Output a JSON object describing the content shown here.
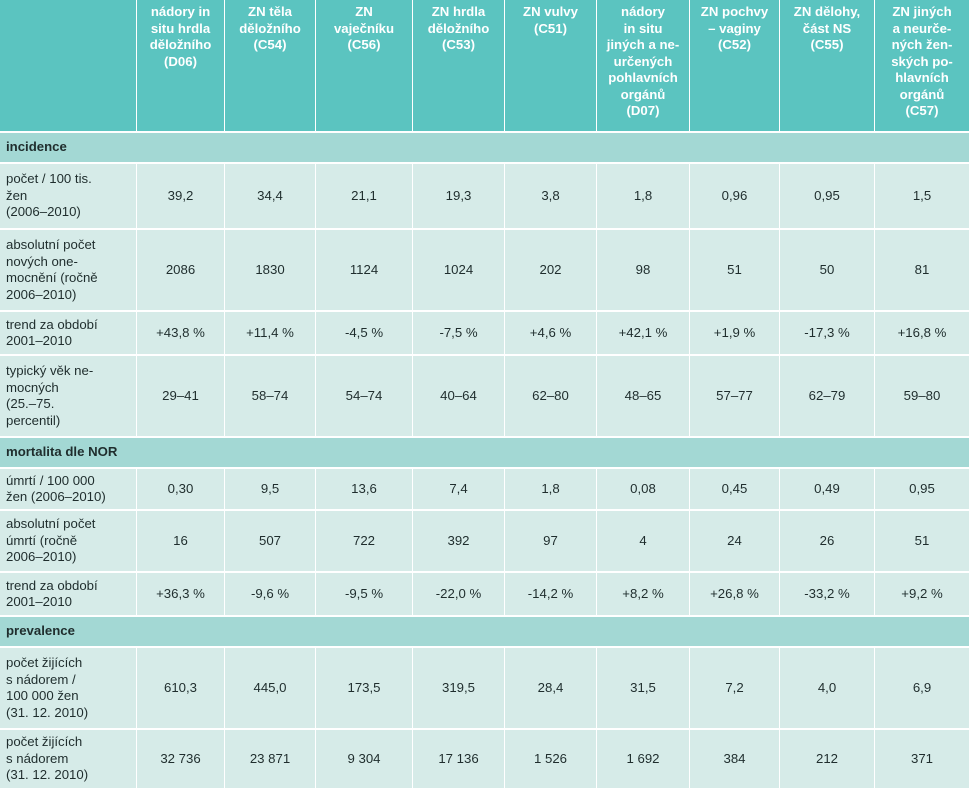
{
  "header": {
    "columns": [
      "",
      "nádory in\nsitu hrdla\nděložního\n(D06)",
      "ZN těla\nděložního\n(C54)",
      "ZN\nvaječníku\n(C56)",
      "ZN hrdla\nděložního\n(C53)",
      "ZN vulvy\n(C51)",
      "nádory\nin situ\njiných a ne-\nurčených\npohlavních\norgánů\n(D07)",
      "ZN pochvy\n– vaginy\n(C52)",
      "ZN dělohy,\nčást NS\n(C55)",
      "ZN jiných\na neurče-\nných žen-\nských po-\nhlavních\norgánů\n(C57)"
    ]
  },
  "sections": [
    {
      "title": "incidence",
      "rows": [
        {
          "label": "počet / 100 tis.\nžen\n(2006–2010)",
          "values": [
            "39,2",
            "34,4",
            "21,1",
            "19,3",
            "3,8",
            "1,8",
            "0,96",
            "0,95",
            "1,5"
          ]
        },
        {
          "label": "absolutní počet\nnových one-\nmocnění (ročně\n2006–2010)",
          "values": [
            "2086",
            "1830",
            "1124",
            "1024",
            "202",
            "98",
            "51",
            "50",
            "81"
          ]
        },
        {
          "label": "trend za období\n2001–2010",
          "values": [
            "+43,8 %",
            "+11,4 %",
            "-4,5 %",
            "-7,5 %",
            "+4,6 %",
            "+42,1 %",
            "+1,9 %",
            "-17,3 %",
            "+16,8 %"
          ]
        },
        {
          "label": "typický věk ne-\nmocných\n(25.–75.\npercentil)",
          "values": [
            "29–41",
            "58–74",
            "54–74",
            "40–64",
            "62–80",
            "48–65",
            "57–77",
            "62–79",
            "59–80"
          ]
        }
      ]
    },
    {
      "title": "mortalita dle NOR",
      "rows": [
        {
          "label": "úmrtí / 100 000\nžen (2006–2010)",
          "values": [
            "0,30",
            "9,5",
            "13,6",
            "7,4",
            "1,8",
            "0,08",
            "0,45",
            "0,49",
            "0,95"
          ]
        },
        {
          "label": "absolutní počet\númrtí (ročně\n2006–2010)",
          "values": [
            "16",
            "507",
            "722",
            "392",
            "97",
            "4",
            "24",
            "26",
            "51"
          ]
        },
        {
          "label": "trend za období\n2001–2010",
          "values": [
            "+36,3 %",
            "-9,6 %",
            "-9,5 %",
            "-22,0 %",
            "-14,2 %",
            "+8,2 %",
            "+26,8 %",
            "-33,2 %",
            "+9,2 %"
          ]
        }
      ]
    },
    {
      "title": "prevalence",
      "rows": [
        {
          "label": "počet žijících\ns nádorem /\n100 000 žen\n(31. 12. 2010)",
          "values": [
            "610,3",
            "445,0",
            "173,5",
            "319,5",
            "28,4",
            "31,5",
            "7,2",
            "4,0",
            "6,9"
          ]
        },
        {
          "label": "počet žijících\ns nádorem\n(31. 12. 2010)",
          "values": [
            "32 736",
            "23 871",
            "9 304",
            "17 136",
            "1 526",
            "1 692",
            "384",
            "212",
            "371"
          ]
        }
      ]
    }
  ],
  "colors": {
    "header_bg": "#5bc4c0",
    "section_bg": "#a3d8d4",
    "row_bg": "#d6ebe8"
  }
}
